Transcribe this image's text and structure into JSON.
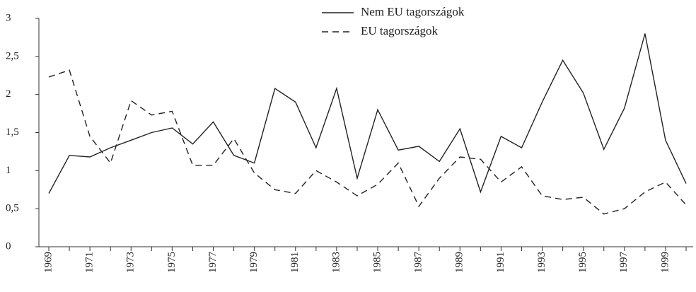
{
  "chart_data": {
    "type": "line",
    "categories": [
      "1969",
      null,
      "1971",
      null,
      "1973",
      null,
      "1975",
      null,
      "1977",
      null,
      "1979",
      null,
      "1981",
      null,
      "1983",
      null,
      "1985",
      null,
      "1987",
      null,
      "1989",
      null,
      "1991",
      null,
      "1993",
      null,
      "1995",
      null,
      "1997",
      null,
      "1999",
      null
    ],
    "series": [
      {
        "name": "Nem EU tagországok",
        "color": "#222222",
        "dashed": false,
        "values": [
          0.7,
          1.2,
          1.18,
          1.3,
          1.4,
          1.5,
          1.56,
          1.35,
          1.64,
          1.2,
          1.1,
          2.08,
          1.9,
          1.3,
          2.08,
          0.9,
          1.8,
          1.27,
          1.32,
          1.12,
          1.55,
          0.72,
          1.45,
          1.3,
          1.9,
          2.45,
          2.02,
          1.28,
          1.82,
          2.8,
          1.4,
          0.83
        ]
      },
      {
        "name": "EU tagországok",
        "color": "#222222",
        "dashed": true,
        "values": [
          2.23,
          2.32,
          1.45,
          1.1,
          1.92,
          1.73,
          1.78,
          1.07,
          1.07,
          1.42,
          0.97,
          0.75,
          0.7,
          1.0,
          0.85,
          0.67,
          0.82,
          1.1,
          0.53,
          0.9,
          1.18,
          1.15,
          0.85,
          1.05,
          0.67,
          0.62,
          0.65,
          0.43,
          0.5,
          0.72,
          0.85,
          0.55
        ]
      }
    ],
    "ylim": [
      0,
      3
    ],
    "yticks": [
      0,
      {
        "value": 0.5,
        "label": "0,5"
      },
      1,
      {
        "value": 1.5,
        "label": "1,5"
      },
      2,
      {
        "value": 2.5,
        "label": "2,5"
      },
      3
    ],
    "grid": false
  }
}
